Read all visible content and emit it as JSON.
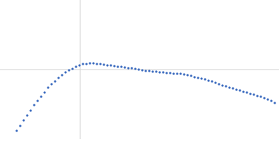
{
  "chart_data": {
    "type": "scatter",
    "x": [
      24,
      29,
      34,
      39,
      44,
      49,
      54,
      59,
      64,
      69,
      74,
      79,
      84,
      89,
      94,
      99,
      104,
      109,
      114,
      119,
      124,
      129,
      134,
      139,
      144,
      149,
      154,
      159,
      164,
      169,
      174,
      179,
      184,
      189,
      194,
      199,
      204,
      209,
      214,
      219,
      224,
      229,
      234,
      239,
      244,
      249,
      254,
      259,
      264,
      269,
      274,
      279,
      284,
      289,
      294,
      299,
      304,
      309,
      314,
      319,
      324,
      329,
      334,
      339,
      344,
      349,
      354,
      359,
      364,
      369,
      374,
      379,
      384,
      389,
      394
    ],
    "values": [
      12,
      19,
      27,
      34,
      41,
      49,
      55,
      61,
      67,
      74,
      79,
      83,
      88,
      92,
      96,
      99,
      101,
      104,
      106,
      108,
      108,
      109,
      109,
      108,
      108,
      107,
      106,
      106,
      105,
      104,
      104,
      103,
      102,
      102,
      101,
      100,
      99,
      98,
      98,
      97,
      97,
      96,
      96,
      95,
      95,
      94,
      94,
      94,
      93,
      92,
      91,
      89,
      88,
      87,
      86,
      84,
      83,
      81,
      79,
      77,
      76,
      74,
      73,
      71,
      70,
      68,
      67,
      65,
      64,
      62,
      61,
      59,
      57,
      55,
      52
    ],
    "color": "#3d6cbf",
    "xlim": [
      0,
      400
    ],
    "ylim": [
      0,
      200
    ],
    "xticks": [
      115
    ],
    "yticks": [
      100
    ],
    "grid": true
  }
}
